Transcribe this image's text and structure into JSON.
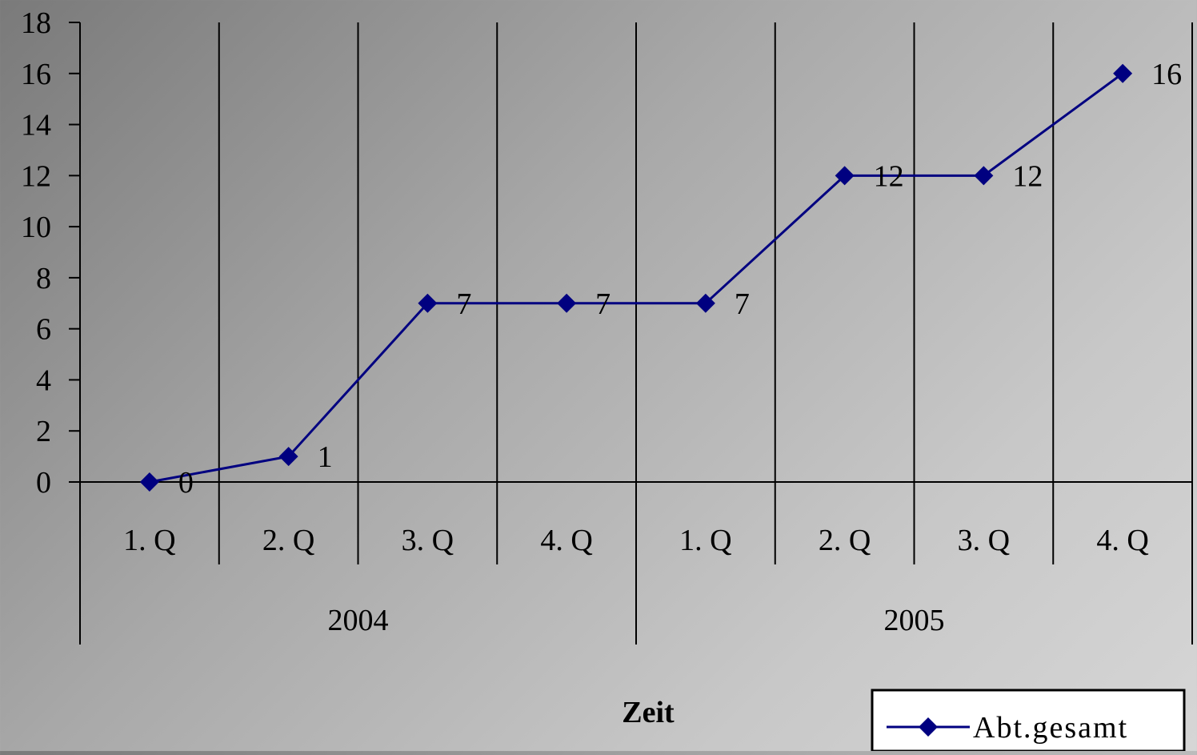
{
  "chart_data": {
    "type": "line",
    "title": "",
    "xlabel": "Zeit",
    "ylabel": "",
    "ylim": [
      0,
      18
    ],
    "yticks": [
      0,
      2,
      4,
      6,
      8,
      10,
      12,
      14,
      16,
      18
    ],
    "categories": [
      "1. Q",
      "2. Q",
      "3. Q",
      "4. Q",
      "1. Q",
      "2. Q",
      "3. Q",
      "4. Q"
    ],
    "groups": [
      {
        "label": "2004",
        "span": 4
      },
      {
        "label": "2005",
        "span": 4
      }
    ],
    "series": [
      {
        "name": "Abt.gesamt",
        "values": [
          0,
          1,
          7,
          7,
          7,
          12,
          12,
          16
        ]
      }
    ],
    "data_labels": true,
    "grid": "vertical",
    "legend_position": "bottom-right",
    "colors": {
      "series": "#000080",
      "axis": "#000000",
      "legend_bg": "#ffffff"
    }
  }
}
